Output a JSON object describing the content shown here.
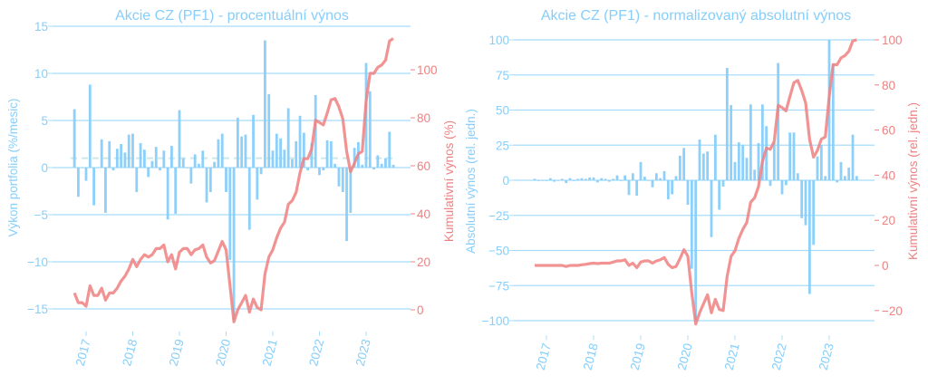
{
  "colors": {
    "bars": "#87cefa",
    "line": "#f08080",
    "grid": "#a8dcfa",
    "mean_line": "#cfe8e6",
    "text_left": "#87cefa",
    "text_right": "#f08080"
  },
  "chart_data": [
    {
      "type": "bar+line",
      "title": "Akcie CZ (PF1) - procentuální výnos",
      "ylabel": "Výkon portfolia (%/mesic)",
      "y2label": "Kumulativní výnos (%)",
      "start_month": "2016-10",
      "frequency": "monthly",
      "xticks": [
        "2017",
        "2018",
        "2019",
        "2020",
        "2021",
        "2022",
        "2023"
      ],
      "yticks": [
        -15,
        -10,
        -5,
        0,
        5,
        10,
        15
      ],
      "y2ticks": [
        0,
        20,
        40,
        60,
        80,
        100
      ],
      "ylim": [
        -17,
        15.5
      ],
      "y2lim": [
        -8,
        120
      ],
      "grid": true,
      "mean_line": 1.0,
      "bars": [
        6.2,
        -3.1,
        0,
        -1.4,
        8.8,
        -4.0,
        0,
        3.0,
        -4.8,
        2.8,
        -0.3,
        2.0,
        2.5,
        1.6,
        3.5,
        3.6,
        -2.6,
        2.6,
        1.9,
        -1.0,
        0.7,
        2.2,
        -0.3,
        1.8,
        -5.5,
        2.3,
        -4.9,
        6.1,
        1.0,
        0,
        -1.7,
        1.4,
        0.4,
        1.8,
        -3.7,
        -2.6,
        0.6,
        3.0,
        3.6,
        -2.6,
        -9.8,
        -16.2,
        5.3,
        3.3,
        3.5,
        -6.6,
        5.6,
        -3.4,
        -0.7,
        13.5,
        7.8,
        1.8,
        3.6,
        3.1,
        1.9,
        6.3,
        0.9,
        2.8,
        5.5,
        3.7,
        -0.3,
        2.6,
        7.7,
        -0.8,
        -0.3,
        2.9,
        2.8,
        0.4,
        -2.0,
        -2.6,
        -7.8,
        -4.8,
        2.1,
        2.7,
        0.3,
        11.1,
        8.1,
        -0.2,
        1.3,
        0.4,
        1.0,
        3.8,
        0.3
      ],
      "cumulative": [
        7,
        3,
        3,
        1.5,
        10,
        6,
        6,
        9,
        4,
        7,
        7,
        9,
        12,
        14,
        17,
        21,
        18,
        21,
        23,
        22,
        23,
        25.5,
        25.5,
        27,
        20,
        23,
        17,
        24,
        25.5,
        25.5,
        23,
        25,
        25.5,
        27,
        22,
        19.5,
        20.5,
        24.5,
        28.5,
        25,
        10,
        -5,
        0,
        3,
        6,
        -1,
        4.5,
        1,
        0,
        15,
        22,
        25,
        30,
        34,
        36.5,
        44,
        45.5,
        49,
        57,
        63,
        63,
        67,
        79,
        78,
        77,
        82,
        87.5,
        88,
        84.5,
        79.5,
        66,
        57.5,
        61,
        65,
        66,
        87,
        98.5,
        98.5,
        101,
        102,
        104,
        112,
        113
      ]
    },
    {
      "type": "bar+line",
      "title": "Akcie CZ (PF1) - normalizovaný absolutní výnos",
      "ylabel": "Absolutní výnos (rel. jedn.)",
      "y2label": "Kumulativní výnos (rel. jedn.)",
      "start_month": "2016-10",
      "frequency": "monthly",
      "xticks": [
        "2017",
        "2018",
        "2019",
        "2020",
        "2021",
        "2022",
        "2023"
      ],
      "yticks": [
        -100,
        -75,
        -50,
        -25,
        0,
        25,
        50,
        75,
        100
      ],
      "y2ticks": [
        -20,
        0,
        20,
        40,
        60,
        80,
        100
      ],
      "ylim": [
        -108,
        107
      ],
      "y2lim": [
        -28,
        105
      ],
      "grid": true,
      "bars": [
        1,
        -0.5,
        0,
        -0.5,
        1.5,
        -1,
        0,
        1,
        -2,
        1.5,
        -0.5,
        1,
        1.5,
        1,
        2,
        2,
        -1.5,
        1.5,
        1,
        -1,
        1,
        3.5,
        -0.5,
        3.5,
        -10.5,
        5,
        -11,
        13,
        2.5,
        0,
        -5,
        5,
        1.5,
        6.5,
        -13.5,
        -10,
        3,
        17.5,
        23,
        -17.5,
        -63,
        -100,
        29,
        19,
        20.5,
        -40.5,
        32.5,
        -21,
        -4.5,
        80,
        53.5,
        13,
        27,
        25,
        16,
        54,
        7.5,
        26.5,
        54,
        38.5,
        -4,
        27,
        83.5,
        -10,
        -3.5,
        34,
        34,
        5,
        -27,
        -32,
        -81,
        -46,
        17,
        25,
        3,
        100,
        83,
        -1.5,
        13,
        3,
        9,
        32.5,
        3
      ],
      "cumulative": [
        0,
        0,
        0,
        0,
        0,
        0,
        0,
        0,
        -0.5,
        0,
        0,
        0,
        0.3,
        0.5,
        0.8,
        1,
        0.8,
        1,
        1,
        1,
        1.5,
        2,
        2,
        2.5,
        0,
        1,
        -1,
        1.5,
        2,
        2,
        1,
        2,
        2.5,
        3.5,
        0.5,
        -1,
        -0.5,
        3,
        7,
        4,
        -12,
        -26,
        -21,
        -17,
        -13,
        -21,
        -15,
        -19.5,
        -20,
        -5,
        4,
        6.5,
        12,
        16,
        19,
        28,
        30,
        35,
        46,
        52,
        51.5,
        55,
        71,
        70,
        68.5,
        75,
        81,
        82,
        77.5,
        72,
        56,
        48,
        51,
        56,
        57,
        75,
        89,
        89,
        92,
        93,
        95,
        99.5,
        100
      ]
    }
  ]
}
